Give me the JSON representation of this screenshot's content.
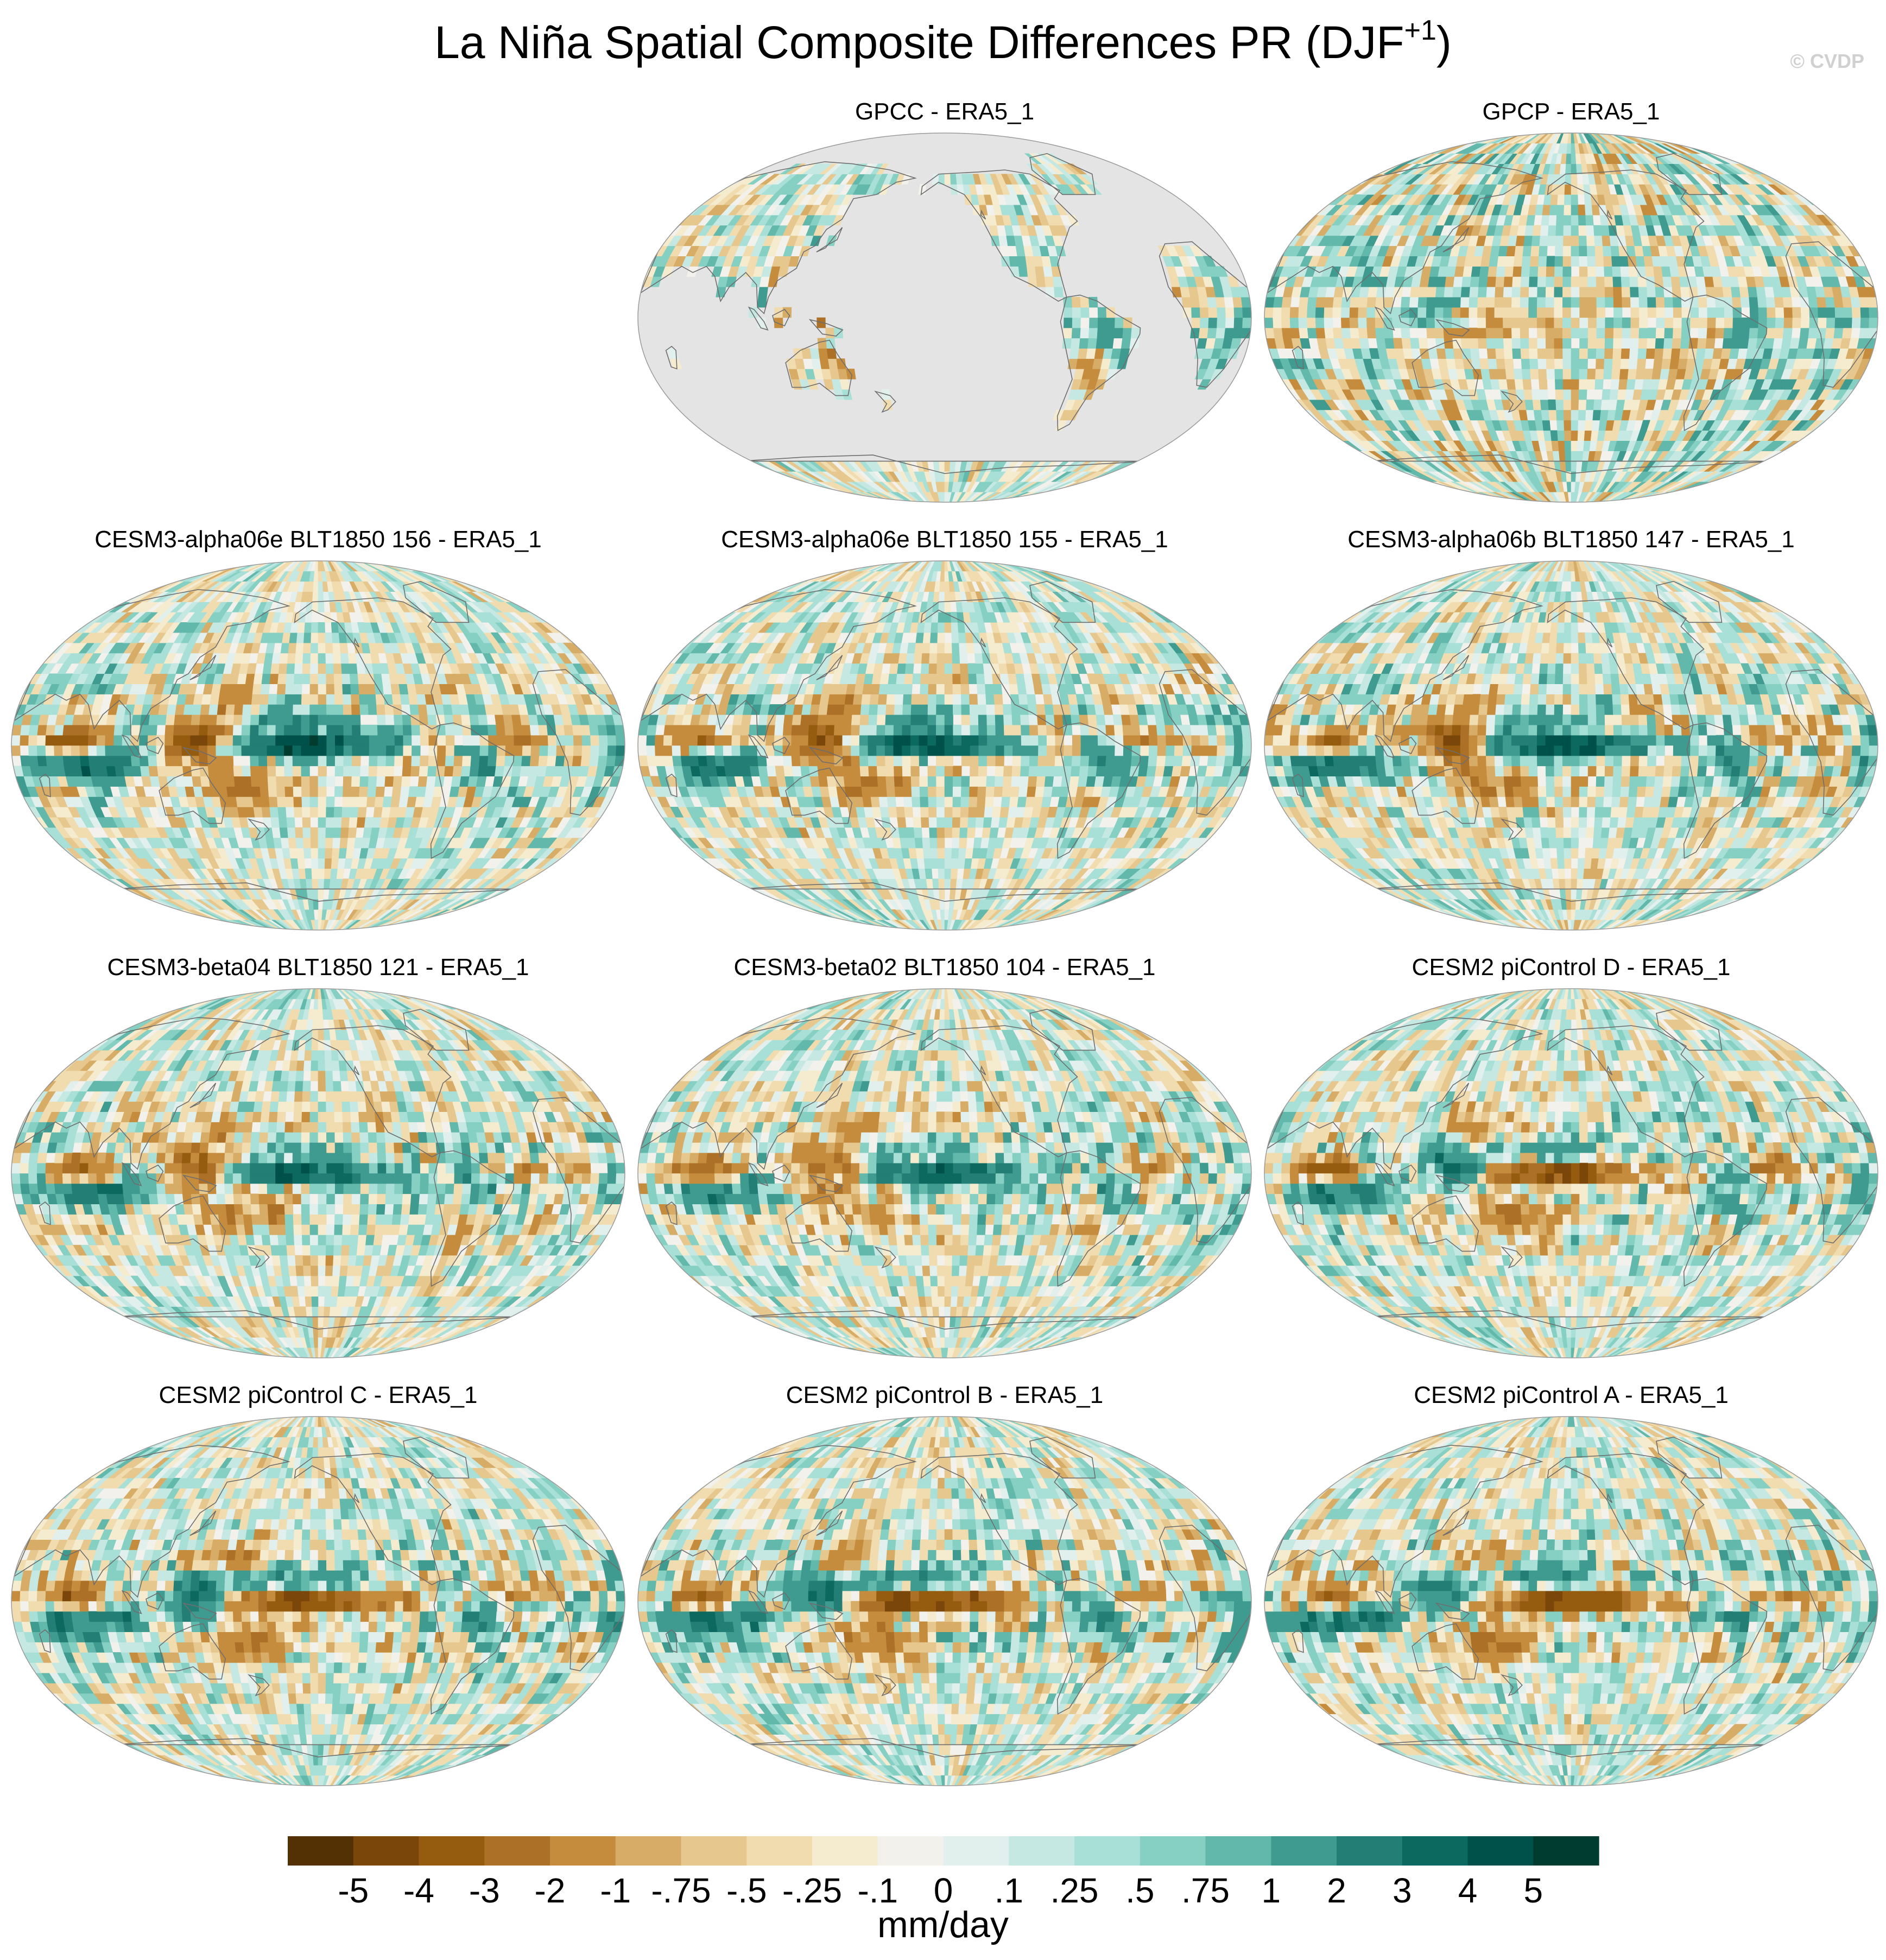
{
  "title": {
    "main": "La Niña Spatial Composite Differences PR (DJF",
    "superscript": "+1",
    "close": ")"
  },
  "watermark": "© CVDP",
  "chart_data": {
    "type": "heatmap",
    "projection": "Robinson (global, Pacific-centred)",
    "variable": "PR",
    "season": "DJF+1",
    "composite": "La Niña",
    "reference": "ERA5_1",
    "units": "mm/day",
    "colorbar": {
      "labels": [
        "-5",
        "-4",
        "-3",
        "-2",
        "-1",
        "-.75",
        "-.5",
        "-.25",
        "-.1",
        "0",
        ".1",
        ".25",
        ".5",
        ".75",
        "1",
        "2",
        "3",
        "4",
        "5"
      ],
      "levels": [
        -5,
        -4,
        -3,
        -2,
        -1,
        -0.75,
        -0.5,
        -0.25,
        -0.1,
        0,
        0.1,
        0.25,
        0.5,
        0.75,
        1,
        2,
        3,
        4,
        5
      ],
      "colors": [
        "#543005",
        "#7a4609",
        "#955b0e",
        "#ac7027",
        "#c68c3e",
        "#d7ac66",
        "#e6c88e",
        "#f1dcb0",
        "#f5ebce",
        "#f3f1ec",
        "#e1efed",
        "#c5e8e3",
        "#a8dfd6",
        "#86d0c3",
        "#62b8aa",
        "#3f9b8f",
        "#237f75",
        "#0c6960",
        "#005149",
        "#003c30"
      ]
    },
    "panels": [
      {
        "title": "GPCC - ERA5_1",
        "pattern": 0,
        "land_only": true
      },
      {
        "title": "GPCP - ERA5_1",
        "pattern": 1
      },
      {
        "title": "CESM3-alpha06e BLT1850 156 - ERA5_1",
        "pattern": 2
      },
      {
        "title": "CESM3-alpha06e BLT1850 155 - ERA5_1",
        "pattern": 2
      },
      {
        "title": "CESM3-alpha06b BLT1850 147 - ERA5_1",
        "pattern": 2
      },
      {
        "title": "CESM3-beta04 BLT1850 121 - ERA5_1",
        "pattern": 3
      },
      {
        "title": "CESM3-beta02 BLT1850 104 - ERA5_1",
        "pattern": 3
      },
      {
        "title": "CESM2 piControl D - ERA5_1",
        "pattern": 4
      },
      {
        "title": "CESM2 piControl C - ERA5_1",
        "pattern": 4
      },
      {
        "title": "CESM2 piControl B - ERA5_1",
        "pattern": 4
      },
      {
        "title": "CESM2 piControl A - ERA5_1",
        "pattern": 4
      }
    ]
  }
}
